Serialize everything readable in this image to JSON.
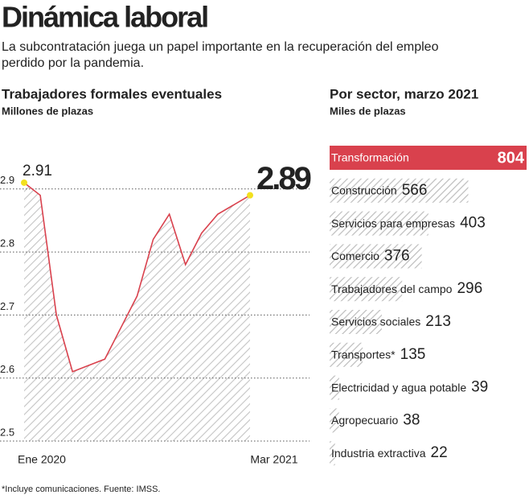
{
  "header": {
    "title": "Dinámica laboral",
    "subtitle_lines": [
      "La subcontratación juega un papel importante en la recuperación del empleo",
      "perdido por la pandemia."
    ]
  },
  "chart_data": [
    {
      "type": "line",
      "title": "Trabajadores formales eventuales",
      "subtitle": "Millones de plazas",
      "categories": [
        "Ene 2020",
        null,
        null,
        null,
        null,
        null,
        null,
        null,
        null,
        null,
        null,
        null,
        null,
        null,
        "Mar 2021"
      ],
      "values": [
        2.91,
        2.89,
        2.7,
        2.61,
        2.62,
        2.63,
        2.68,
        2.73,
        2.82,
        2.86,
        2.78,
        2.83,
        2.86,
        2.875,
        2.89
      ],
      "color": "#d9414d",
      "point_color": "#f2e01f",
      "ylim": [
        2.5,
        2.97
      ],
      "yticks": [
        2.5,
        2.6,
        2.7,
        2.8,
        2.9
      ],
      "grid": true
    },
    {
      "type": "hbar",
      "title": "Por sector, marzo 2021",
      "subtitle": "Miles de plazas",
      "categories": [
        "Transformación",
        "Construcción",
        "Servicios para empresas",
        "Comercio",
        "Trabajadores del campo",
        "Servicios sociales",
        "Transportes*",
        "Electricidad y agua potable",
        "Agropecuario",
        "Industria extractiva"
      ],
      "values": [
        804,
        566,
        403,
        376,
        296,
        213,
        135,
        39,
        38,
        22
      ],
      "color": "#bdbdbd",
      "highlight_color": "#d9414d"
    }
  ],
  "footnote": "*Incluye comunicaciones. Fuente: IMSS."
}
